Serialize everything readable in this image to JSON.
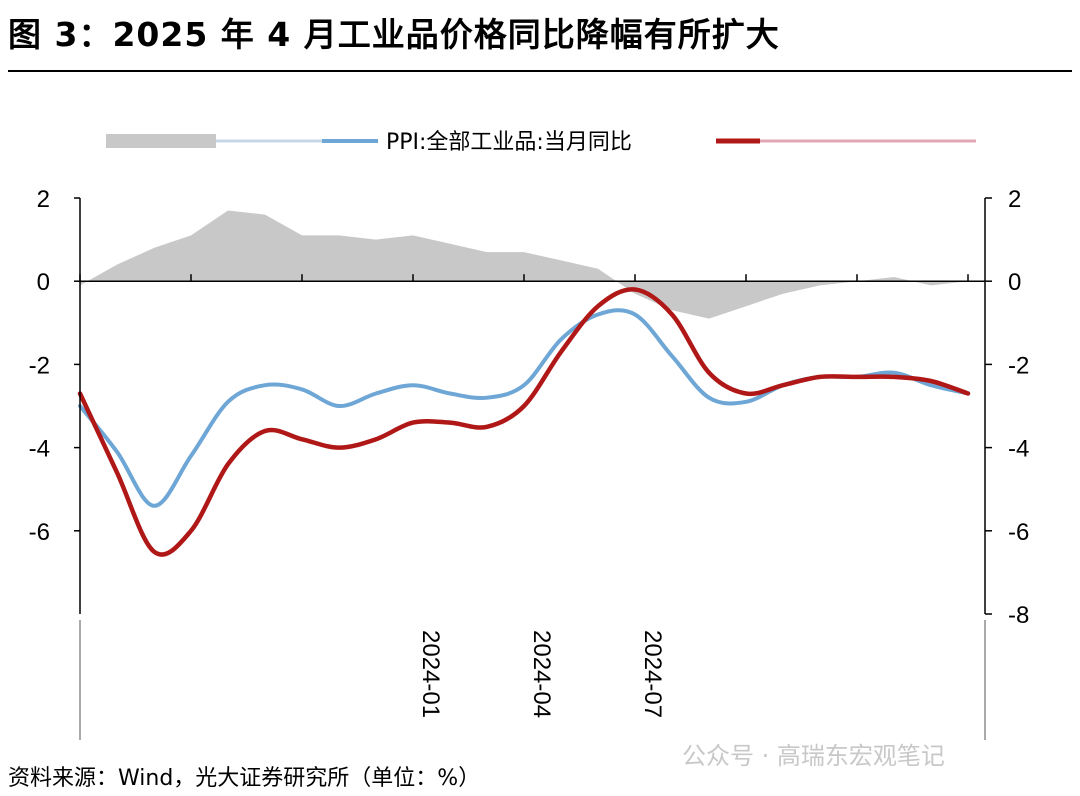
{
  "header": {
    "title": "图 3：2025 年 4 月工业品价格同比降幅有所扩大"
  },
  "footer": {
    "source": "资料来源：Wind，光大证券研究所（单位：%）",
    "watermark": "公众号 · 高瑞东宏观笔记"
  },
  "chart_data": {
    "type": "line",
    "x": [
      "2023-04",
      "2023-05",
      "2023-06",
      "2023-07",
      "2023-08",
      "2023-09",
      "2023-10",
      "2023-11",
      "2023-12",
      "2024-01",
      "2024-02",
      "2024-03",
      "2024-04",
      "2024-05",
      "2024-06",
      "2024-07",
      "2024-08",
      "2024-09",
      "2024-10",
      "2024-11",
      "2024-12",
      "2025-01",
      "2025-02",
      "2025-03",
      "2025-04"
    ],
    "x_tick_labels": [
      "2024-01",
      "2024-04",
      "2024-07"
    ],
    "y_ticks_left": [
      -6,
      -4,
      -2,
      0,
      2
    ],
    "y_ticks_right": [
      -8,
      -6,
      -4,
      -2,
      0,
      2
    ],
    "ylim": [
      -8,
      2
    ],
    "series": [
      {
        "kind": "area",
        "name": "",
        "color": "#c8c8c8",
        "values": [
          -0.1,
          0.4,
          0.8,
          1.1,
          1.7,
          1.6,
          1.1,
          1.1,
          1.0,
          1.1,
          0.9,
          0.7,
          0.7,
          0.5,
          0.3,
          -0.3,
          -0.7,
          -0.9,
          -0.6,
          -0.3,
          -0.1,
          0.0,
          0.1,
          -0.1,
          0.0
        ]
      },
      {
        "kind": "line",
        "name": "PPI:全部工业品:当月同比",
        "color": "#6ea6d6",
        "values": [
          -3.0,
          -4.1,
          -5.4,
          -4.2,
          -2.9,
          -2.5,
          -2.6,
          -3.0,
          -2.7,
          -2.5,
          -2.7,
          -2.8,
          -2.5,
          -1.4,
          -0.8,
          -0.8,
          -1.8,
          -2.8,
          -2.9,
          -2.5,
          -2.3,
          -2.3,
          -2.2,
          -2.5,
          -2.7
        ]
      },
      {
        "kind": "line",
        "name": "",
        "color": "#b01818",
        "values": [
          -2.7,
          -4.6,
          -6.5,
          -6.0,
          -4.4,
          -3.6,
          -3.8,
          -4.0,
          -3.8,
          -3.4,
          -3.4,
          -3.5,
          -3.0,
          -1.7,
          -0.6,
          -0.2,
          -0.8,
          -2.2,
          -2.7,
          -2.5,
          -2.3,
          -2.3,
          -2.3,
          -2.4,
          -2.7
        ]
      }
    ],
    "legend": {
      "placement": "top",
      "label": "PPI:全部工业品:当月同比"
    },
    "grid": false
  }
}
